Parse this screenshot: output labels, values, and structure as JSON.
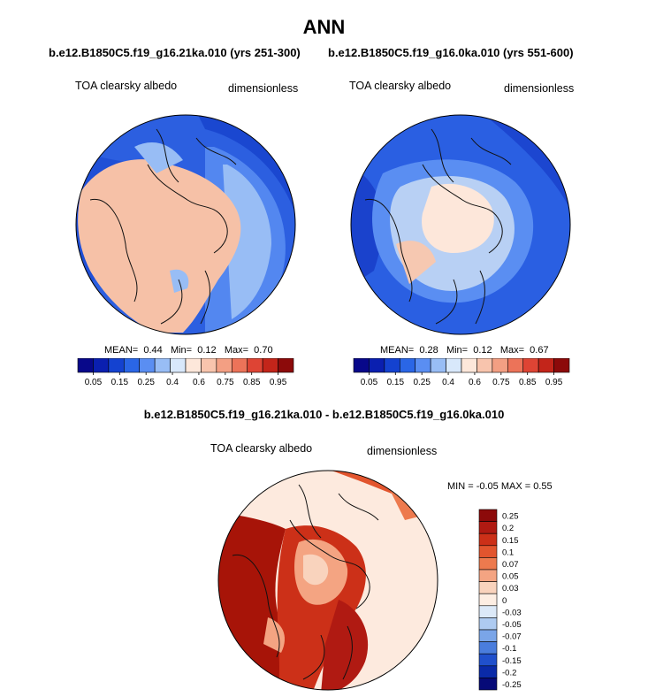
{
  "title": "ANN",
  "colors": {
    "cb_seq": [
      "#08088a",
      "#0a1fb0",
      "#1442d0",
      "#2a66e6",
      "#5a8ef2",
      "#98bdf5",
      "#d8e8fb",
      "#fde7da",
      "#f8c4ad",
      "#f39f83",
      "#ec7359",
      "#de4434",
      "#c3251a",
      "#8c0a0a"
    ],
    "cb_diff": [
      "#8c0a0a",
      "#b01a12",
      "#cc3018",
      "#e2552e",
      "#ed7a4e",
      "#f4a482",
      "#f9d3bd",
      "#fdeee3",
      "#dce9f8",
      "#aecbf1",
      "#7aa5e8",
      "#4a7ddd",
      "#2050cc",
      "#0a2aa8",
      "#060a78"
    ],
    "ocean_ann1": "#2c5fe0",
    "land_ann1": "#f6c1a7",
    "ocean_ann2": "#2a5fe2",
    "land_ann2": "#b8d0f4",
    "diff_bg": "#fdeade",
    "diff_hot": "#a71408"
  },
  "panels": [
    {
      "case_name": "b.e12.B1850C5.f19_g16.21ka.010 (yrs 251-300)",
      "left_label": "TOA clearsky albedo",
      "right_label": "dimensionless",
      "stats": {
        "mean_label": "MEAN=",
        "mean": "0.44",
        "min_label": "Min=",
        "min": "0.12",
        "max_label": "Max=",
        "max": "0.70"
      },
      "colorbar_ticks": [
        "0.05",
        "0.15",
        "0.25",
        "0.4",
        "0.6",
        "0.75",
        "0.85",
        "0.95"
      ]
    },
    {
      "case_name": "b.e12.B1850C5.f19_g16.0ka.010 (yrs 551-600)",
      "left_label": "TOA clearsky albedo",
      "right_label": "dimensionless",
      "stats": {
        "mean_label": "MEAN=",
        "mean": "0.28",
        "min_label": "Min=",
        "min": "0.12",
        "max_label": "Max=",
        "max": "0.67"
      },
      "colorbar_ticks": [
        "0.05",
        "0.15",
        "0.25",
        "0.4",
        "0.6",
        "0.75",
        "0.85",
        "0.95"
      ]
    }
  ],
  "diff": {
    "case_name": "b.e12.B1850C5.f19_g16.21ka.010 - b.e12.B1850C5.f19_g16.0ka.010",
    "left_label": "TOA clearsky albedo",
    "right_label": "dimensionless",
    "minmax": "MIN =  -0.05 MAX =   0.55",
    "colorbar_ticks": [
      "0.25",
      "0.2",
      "0.15",
      "0.1",
      "0.07",
      "0.05",
      "0.03",
      "0",
      "-0.03",
      "-0.05",
      "-0.07",
      "-0.1",
      "-0.15",
      "-0.2",
      "-0.25"
    ]
  }
}
